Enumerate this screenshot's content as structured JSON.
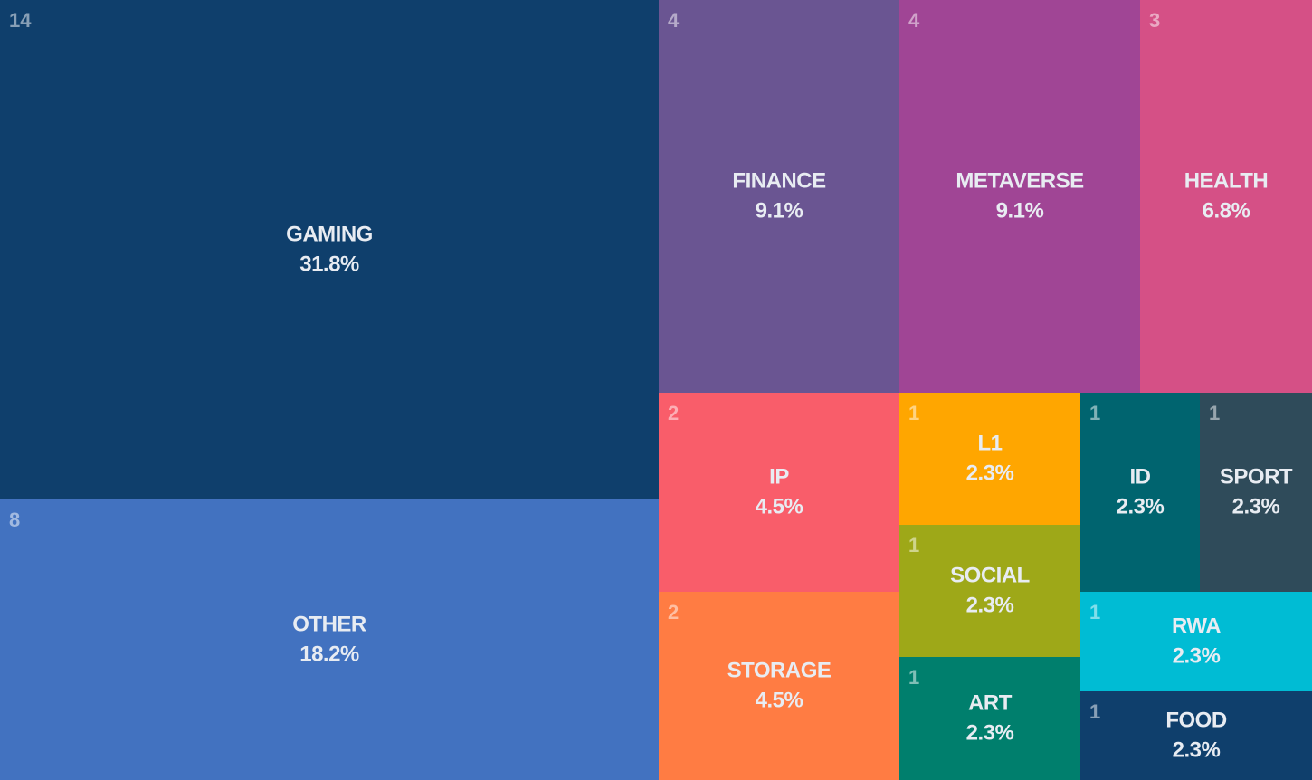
{
  "chart_data": {
    "type": "treemap",
    "categories": [
      "GAMING",
      "OTHER",
      "FINANCE",
      "METAVERSE",
      "HEALTH",
      "IP",
      "STORAGE",
      "L1",
      "SOCIAL",
      "ART",
      "ID",
      "SPORT",
      "RWA",
      "FOOD"
    ],
    "values": [
      14,
      8,
      4,
      4,
      3,
      2,
      2,
      1,
      1,
      1,
      1,
      1,
      1,
      1
    ],
    "shares": [
      31.8,
      18.2,
      9.1,
      9.1,
      6.8,
      4.5,
      4.5,
      2.3,
      2.3,
      2.3,
      2.3,
      2.3,
      2.3,
      2.3
    ],
    "share_labels": [
      "31.8%",
      "18.2%",
      "9.1%",
      "9.1%",
      "6.8%",
      "4.5%",
      "4.5%",
      "2.3%",
      "2.3%",
      "2.3%",
      "2.3%",
      "2.3%",
      "2.3%",
      "2.3%"
    ],
    "colors": [
      "#0f3f6c",
      "#4272c0",
      "#6a5592",
      "#a04595",
      "#d55086",
      "#f95d6a",
      "#ff7c43",
      "#ffa600",
      "#9ea818",
      "#007f6d",
      "#00646f",
      "#2f4b5a",
      "#00bcd4",
      "#0f3f6c"
    ]
  }
}
